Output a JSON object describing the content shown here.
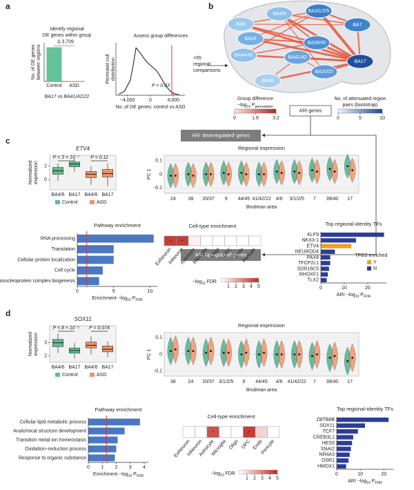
{
  "panels": [
    "a",
    "b",
    "c",
    "d"
  ],
  "network": {
    "nodes": [
      "BA4/6",
      "BA3/1/2/5",
      "BA9",
      "BA7",
      "BA24",
      "BA39/40",
      "BA44/45",
      "BA41/42",
      "BA17",
      "BA20/37",
      "BA38"
    ],
    "legend_left": {
      "title": "Group difference",
      "sub": [
        "−log",
        "10",
        " P",
        "permutation"
      ],
      "ticks": [
        0,
        1.6,
        3.2
      ]
    },
    "legend_right": {
      "title": [
        "No. of attenuated region",
        "pairs (bootstrap)"
      ],
      "ticks": [
        0,
        5,
        10
      ]
    },
    "ari": "ARI genes",
    "down": "ARI ‘downregulated’ genes",
    "up": "ARI ‘upregulated’ genes"
  },
  "chart_data": [
    {
      "type": "bar",
      "title": [
        "Identify regional",
        "DE genes within group"
      ],
      "ylabel": [
        "No. of DE genes",
        "between regions"
      ],
      "categories": [
        "Control",
        "ASD"
      ],
      "values": [
        3709,
        40
      ],
      "colors": [
        "#66c29b",
        "#e8835a"
      ],
      "annotation": "Δ 3,709",
      "xlabel": "BA17 vs BA41/42/22",
      "ylim": [
        0,
        4200
      ]
    },
    {
      "type": "density",
      "title": "Assess group differences",
      "ylabel": [
        "Permuted null",
        "distribution"
      ],
      "xlabel": "No. of DE genes: control vs ASD",
      "x": [
        -5500,
        -4500,
        -3500,
        -3000,
        -2500,
        -2000,
        -1500,
        -1000,
        -500,
        0,
        500,
        1000,
        1500,
        2000,
        2500,
        3000,
        3500,
        4000,
        4500,
        5000
      ],
      "values": [
        0.02,
        0.08,
        0.3,
        0.6,
        0.95,
        0.88,
        0.8,
        0.72,
        0.65,
        0.6,
        0.55,
        0.5,
        0.42,
        0.32,
        0.22,
        0.14,
        0.08,
        0.04,
        0.02,
        0.01
      ],
      "xlim": [
        -6000,
        6000
      ],
      "ylim": [
        0,
        1.05
      ],
      "xticks": [
        {
          "value": -4000,
          "label": "−4,000"
        },
        0,
        {
          "value": 4000,
          "label": "4,000"
        }
      ],
      "observed": 3709,
      "annotation": "P = 0.03",
      "color": "#111111",
      "highlight": "#e0303a",
      "note": [
        "×55",
        "regional",
        "comparisons"
      ]
    },
    {
      "type": "box",
      "title": "ETV4",
      "categories": [
        "BA4/6",
        "BA17",
        "BA4/6",
        "BA17"
      ],
      "ylabel": [
        "Normalized",
        "expression"
      ],
      "ylim": [
        -1.5,
        3.6
      ],
      "yticks": [
        0,
        2
      ],
      "annotations": [
        "P < 3 × 10⁻⁷",
        "P = 0.11"
      ],
      "series": [
        {
          "name": "Control",
          "color": "#5bbf94",
          "q1": [
            0.8,
            1.9
          ],
          "median": [
            1.3,
            2.3
          ],
          "q3": [
            1.8,
            2.6
          ],
          "low": [
            -0.2,
            1.2
          ],
          "high": [
            2.4,
            3.1
          ]
        },
        {
          "name": "ASD",
          "color": "#ef9466",
          "q1": [
            0.3,
            0.4
          ],
          "median": [
            0.8,
            0.9
          ],
          "q3": [
            1.2,
            1.5
          ],
          "low": [
            -0.8,
            -1.0
          ],
          "high": [
            2.0,
            2.4
          ]
        }
      ]
    },
    {
      "type": "violin",
      "title": "Regional expression",
      "ylabel": "PC 1",
      "xlabel": "Brodman area",
      "categories": [
        "24",
        "38",
        "20/37",
        "9",
        "44/45",
        "41/42/22",
        "4/6",
        "3/1/2/5",
        "7",
        "39/40",
        "17"
      ],
      "ylim": [
        -0.14,
        0.14
      ],
      "yticks": [
        -0.1,
        0,
        0.1
      ],
      "series": [
        {
          "name": "Control",
          "color": "#3aa884",
          "values": [
            -0.01,
            0.0,
            0.0,
            0.01,
            0.01,
            0.0,
            0.02,
            0.02,
            0.03,
            0.04,
            0.06
          ]
        },
        {
          "name": "ASD",
          "color": "#ef8a5a",
          "values": [
            -0.01,
            -0.01,
            0.0,
            0.0,
            0.0,
            0.0,
            0.01,
            0.01,
            0.02,
            0.02,
            0.03
          ]
        }
      ]
    },
    {
      "type": "hbar",
      "title": "Pathway enrichment",
      "xlabel": [
        "Enrichment −log",
        "10",
        " P",
        "FDR"
      ],
      "categories": [
        "RNA processing",
        "Translation",
        "Cellular protein localization",
        "Cell cycle",
        "Ribonucleoprotein complex biogenesis"
      ],
      "values": [
        10.5,
        5,
        5,
        3.5,
        3
      ],
      "color": "#4a78c2",
      "threshold": 1.3,
      "xlim": [
        0,
        11
      ],
      "xticks": [
        0,
        5,
        10
      ]
    },
    {
      "type": "heat",
      "title": "Cell-type enrichment",
      "categories": [
        "ExNeuron",
        "InNeuron",
        "Astrocyte",
        "Microglia",
        "Oligo",
        "OPC",
        "Endo",
        "Pericyte"
      ],
      "values": [
        4.5,
        4.5,
        0.3,
        0,
        0,
        0,
        0,
        0
      ],
      "star": "*",
      "starred": [
        0,
        1
      ],
      "zlim": [
        0,
        5
      ],
      "zticks": [
        1,
        2,
        3,
        4,
        5
      ],
      "legend": [
        "−log",
        "10",
        " FDR"
      ],
      "color": "#c0281e"
    },
    {
      "type": "hbar",
      "title": "Top regional-identity TFs",
      "xlabel": [
        "ARI −log",
        "10",
        " P",
        "FDR"
      ],
      "categories": [
        "KLF9",
        "NKX3-1",
        "ETV4",
        "NEUROD4",
        "PAX8",
        "TFCP2L1",
        "SDR16C5",
        "RHOXF1",
        "TLX2"
      ],
      "values": [
        27,
        15,
        13,
        6,
        4,
        4,
        3.5,
        3,
        2.5
      ],
      "colors": [
        "#2c3e94",
        "#2c3e94",
        "#f0a020",
        "#2c3e94",
        "#2c3e94",
        "#2c3e94",
        "#2c3e94",
        "#2c3e94",
        "#2c3e94"
      ],
      "legend": {
        "title": "TFBS enriched",
        "names": [
          "Y",
          "N"
        ],
        "colors": [
          "#f0a020",
          "#2c3e94"
        ]
      },
      "xlim": [
        0,
        28
      ],
      "xticks": [
        0,
        10,
        20
      ]
    },
    {
      "type": "box",
      "title": "SOX11",
      "categories": [
        "BA4/6",
        "BA17",
        "BA4/6",
        "BA17"
      ],
      "ylabel": [
        "Normalized",
        "expression"
      ],
      "ylim": [
        1.5,
        4.3
      ],
      "yticks": [
        2,
        3
      ],
      "annotations": [
        "P < 8 × 10⁻⁵",
        "P = 0.074"
      ],
      "series": [
        {
          "name": "Control",
          "color": "#5bbf94",
          "q1": [
            2.7,
            2.2
          ],
          "median": [
            3.0,
            2.4
          ],
          "q3": [
            3.25,
            2.6
          ],
          "low": [
            2.2,
            1.8
          ],
          "high": [
            3.7,
            3.0
          ]
        },
        {
          "name": "ASD",
          "color": "#ef9466",
          "q1": [
            2.6,
            2.3
          ],
          "median": [
            2.8,
            2.5
          ],
          "q3": [
            3.05,
            2.75
          ],
          "low": [
            2.1,
            1.9
          ],
          "high": [
            3.5,
            3.1
          ]
        }
      ]
    },
    {
      "type": "violin",
      "title": "Regional expression",
      "ylabel": "PC 1",
      "xlabel": "Brodman area",
      "categories": [
        "38",
        "24",
        "20/37",
        "3/1/2/5",
        "9",
        "44/45",
        "4/6",
        "41/42/22",
        "7",
        "39/40",
        "17"
      ],
      "ylim": [
        -0.13,
        0.13
      ],
      "yticks": [
        -0.1,
        0,
        0.1
      ],
      "series": [
        {
          "name": "Control",
          "color": "#3aa884",
          "values": [
            0.02,
            0.02,
            0.01,
            0.01,
            0.0,
            0.0,
            0.0,
            0.0,
            -0.01,
            -0.02,
            -0.04
          ]
        },
        {
          "name": "ASD",
          "color": "#ef8a5a",
          "values": [
            0.03,
            0.02,
            0.02,
            0.01,
            0.01,
            0.01,
            0.0,
            0.0,
            0.0,
            -0.01,
            -0.02
          ]
        }
      ]
    },
    {
      "type": "hbar",
      "title": "Pathway enrichment",
      "xlabel": [
        "Enrichment −log",
        "10",
        " P",
        "FDR"
      ],
      "categories": [
        "Cellular lipid metabolic process",
        "Anatomical structure development",
        "Transition metal ion homeostasis",
        "Oxidation–reduction process",
        "Response to organic substance"
      ],
      "values": [
        3.7,
        2.6,
        2.1,
        2.0,
        1.9
      ],
      "color": "#4a78c2",
      "threshold": 1.3,
      "xlim": [
        0,
        4.3
      ],
      "xticks": [
        0,
        1,
        2,
        3,
        4
      ]
    },
    {
      "type": "heat",
      "title": "Cell-type enrichment",
      "categories": [
        "ExNeuron",
        "InNeuron",
        "Astrocyte",
        "Microglia",
        "Oligo",
        "OPC",
        "Endo",
        "Pericyte"
      ],
      "values": [
        0,
        0,
        4,
        0,
        0,
        4.5,
        1,
        0
      ],
      "star": "*",
      "starred": [
        2,
        5
      ],
      "zlim": [
        0,
        5
      ],
      "zticks": [
        1,
        2,
        3,
        4,
        5
      ],
      "legend": [
        "−log",
        "10",
        " FDR"
      ],
      "color": "#c0281e"
    },
    {
      "type": "hbar",
      "title": "Top regional-identity TFs",
      "xlabel": [
        "ARI −log",
        "10",
        " P",
        "FDR"
      ],
      "categories": [
        "ZBTB8B",
        "SOX11",
        "TCF7",
        "CREB3L1",
        "HES5",
        "SNAI2",
        "NR4A3",
        "OSR1",
        "HMOX1"
      ],
      "values": [
        22,
        12,
        9,
        7,
        6.5,
        6,
        5.5,
        5,
        4
      ],
      "color": "#2c3e94",
      "xlim": [
        0,
        24
      ],
      "xticks": [
        0,
        10,
        20
      ]
    }
  ]
}
